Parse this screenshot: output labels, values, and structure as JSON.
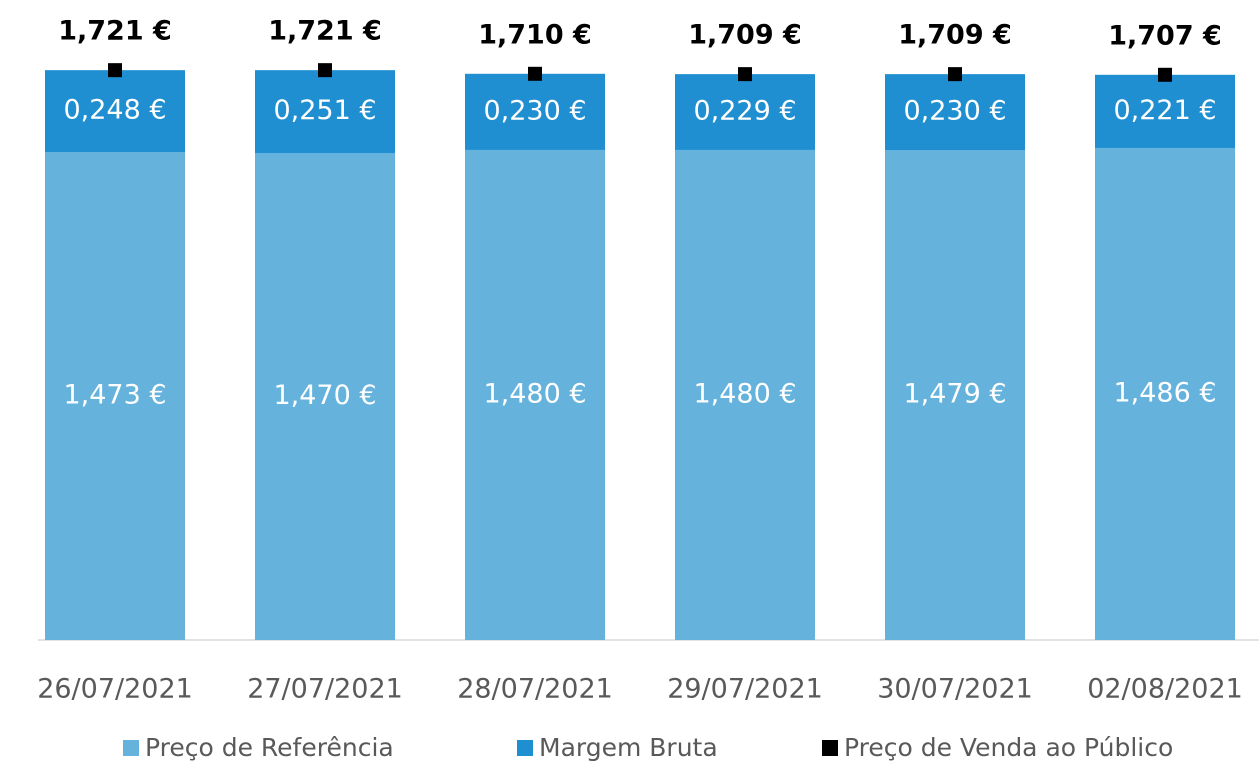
{
  "chart_data": {
    "type": "bar",
    "stacked": true,
    "categories": [
      "26/07/2021",
      "27/07/2021",
      "28/07/2021",
      "29/07/2021",
      "30/07/2021",
      "02/08/2021"
    ],
    "ylim": [
      0,
      1.8
    ],
    "legend": "bottom",
    "series": [
      {
        "name": "Preço de Referência",
        "color": "#65b2dc",
        "type": "bar",
        "values": [
          1.473,
          1.47,
          1.48,
          1.48,
          1.479,
          1.486
        ],
        "value_labels": [
          "1,473 €",
          "1,470 €",
          "1,480 €",
          "1,480 €",
          "1,479 €",
          "1,486 €"
        ]
      },
      {
        "name": "Margem Bruta",
        "color": "#1f8fd1",
        "type": "bar",
        "values": [
          0.248,
          0.251,
          0.23,
          0.229,
          0.23,
          0.221
        ],
        "value_labels": [
          "0,248 €",
          "0,251 €",
          "0,230 €",
          "0,229 €",
          "0,230 €",
          "0,221 €"
        ]
      },
      {
        "name": "Preço de Venda ao Público",
        "color": "#000000",
        "type": "marker",
        "values": [
          1.721,
          1.721,
          1.71,
          1.709,
          1.709,
          1.707
        ],
        "value_labels": [
          "1,721 €",
          "1,721 €",
          "1,710 €",
          "1,709 €",
          "1,709 €",
          "1,707 €"
        ]
      }
    ]
  }
}
